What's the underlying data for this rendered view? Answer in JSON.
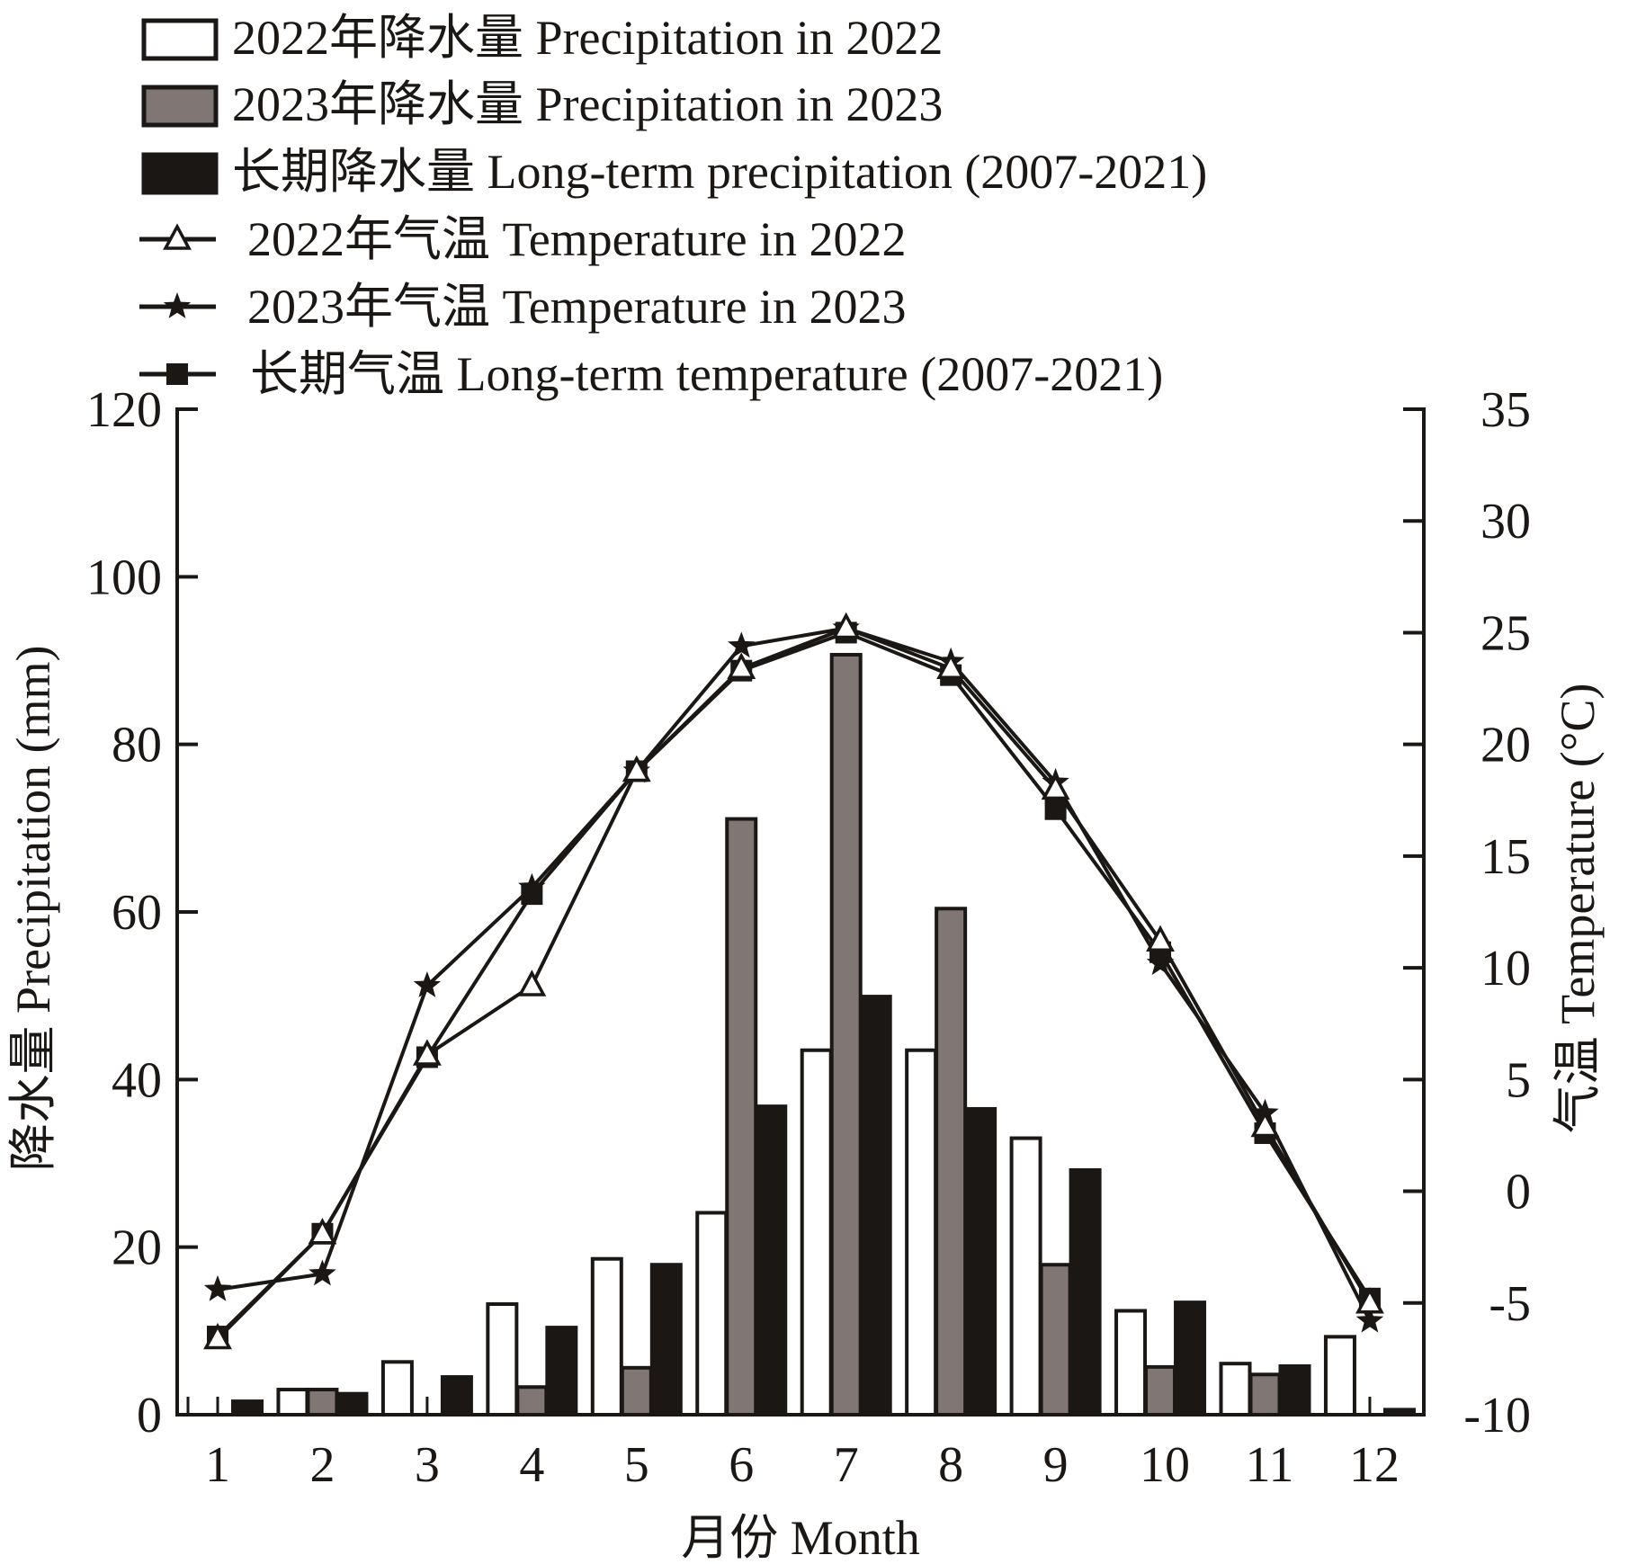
{
  "chart_data": {
    "type": "bar+line",
    "title": "",
    "categories": [
      "1",
      "2",
      "3",
      "4",
      "5",
      "6",
      "7",
      "8",
      "9",
      "10",
      "11",
      "12"
    ],
    "xlabel": "月份 Month",
    "ylabel_left": "降水量 Precipitation (mm)",
    "ylabel_right": "气温 Temperature (°C)",
    "ylim_left": [
      0,
      120
    ],
    "yticks_left": [
      "0",
      "20",
      "40",
      "60",
      "80",
      "100",
      "120"
    ],
    "ylim_right": [
      -10,
      35
    ],
    "yticks_right": [
      "-10",
      "-5",
      "0",
      "5",
      "10",
      "15",
      "20",
      "25",
      "30",
      "35"
    ],
    "grid": false,
    "legend_position": "top",
    "bar_series": [
      {
        "name": "2022年降水量 Precipitation in 2022",
        "fill": "#ffffff",
        "values": [
          0,
          3.0,
          6.3,
          13.2,
          18.6,
          24.1,
          43.5,
          43.5,
          33.0,
          12.4,
          6.1,
          9.3
        ]
      },
      {
        "name": "2023年降水量 Precipitation in 2023",
        "fill": "#807775",
        "values": [
          0,
          3.0,
          0,
          3.3,
          5.6,
          71.1,
          90.7,
          60.4,
          17.9,
          5.7,
          4.8,
          0
        ]
      },
      {
        "name": "长期降水量 Long-term precipitation (2007-2021)",
        "fill": "#1a1714",
        "values": [
          1.6,
          2.5,
          4.5,
          10.4,
          17.9,
          36.8,
          49.9,
          36.5,
          29.2,
          13.4,
          5.8,
          0.6
        ]
      }
    ],
    "line_series": [
      {
        "name": "2022年气温 Temperature in 2022",
        "marker": "triangle-open",
        "values": [
          -6.6,
          -1.9,
          6.1,
          9.2,
          18.8,
          23.4,
          25.2,
          23.4,
          18.0,
          11.2,
          2.9,
          -5.0
        ]
      },
      {
        "name": "2023年气温 Temperature in 2023",
        "marker": "star",
        "values": [
          -4.4,
          -3.7,
          9.2,
          13.6,
          18.8,
          24.4,
          25.2,
          23.7,
          18.3,
          10.2,
          3.5,
          -5.8
        ]
      },
      {
        "name": "长期气温 Long-term temperature (2007-2021)",
        "marker": "square",
        "values": [
          -6.5,
          -1.9,
          6.0,
          13.3,
          18.8,
          23.3,
          25.0,
          23.1,
          17.1,
          10.7,
          2.6,
          -4.8
        ]
      }
    ]
  },
  "colors": {
    "ink": "#1a1714",
    "gray": "#807775",
    "white": "#ffffff"
  }
}
